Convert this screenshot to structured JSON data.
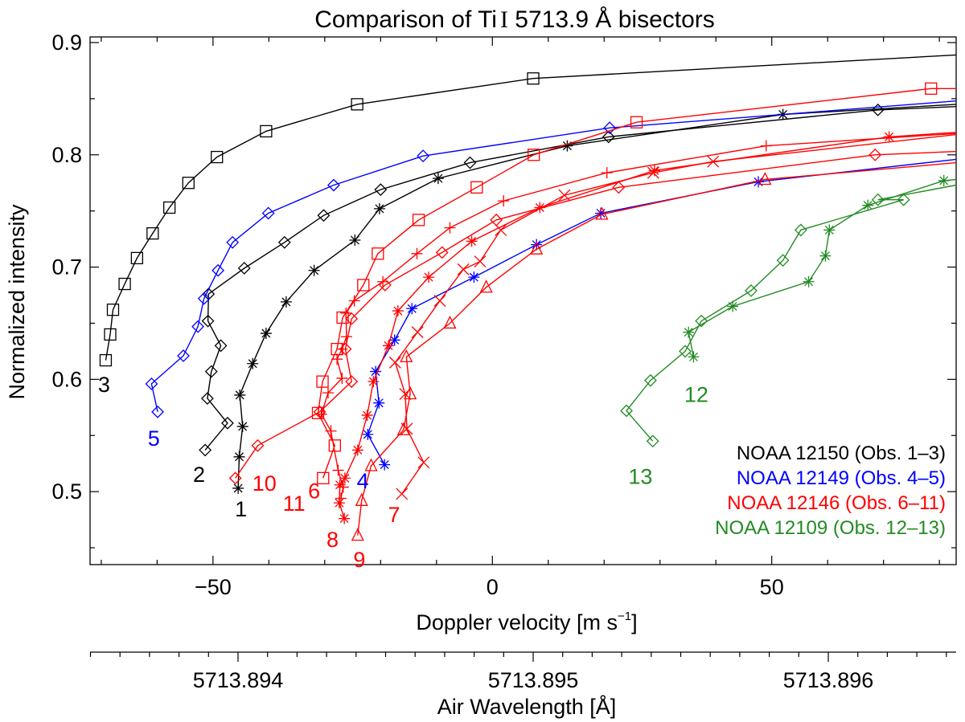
{
  "chart_data": {
    "type": "line",
    "title": "Comparison of Ti I 5713.9 Å bisectors",
    "title_parts": {
      "prefix": "Comparison of Ti",
      "ion": "I",
      "suffix": " 5713.9 Å bisectors"
    },
    "xlabel": "Doppler velocity [m s⁻¹]",
    "xlabel_parts": {
      "main": "Doppler velocity [m s",
      "sup": "−1",
      "end": "]"
    },
    "ylabel": "Normalized intensity",
    "x2label": "Air Wavelength [Å]",
    "xlim": [
      -72,
      83
    ],
    "ylim": [
      0.435,
      0.905
    ],
    "x_ticks": [
      -50,
      0,
      50
    ],
    "x_tick_labels": [
      "−50",
      "0",
      "50"
    ],
    "y_ticks": [
      0.5,
      0.6,
      0.7,
      0.8,
      0.9
    ],
    "y_tick_labels": [
      "0.5",
      "0.6",
      "0.7",
      "0.8",
      "0.9"
    ],
    "wavelength_ticks": [
      5713.894,
      5713.895,
      5713.896
    ],
    "wavelength_tick_labels": [
      "5713.894",
      "5713.895",
      "5713.896"
    ],
    "grid": false,
    "legend_position": "bottom-right",
    "colors": {
      "black": "#000000",
      "blue": "#0000ff",
      "red": "#ff0000",
      "green": "#228b22"
    },
    "legend": [
      {
        "region": "NOAA 12150",
        "obs": "(Obs. 1–3)",
        "color": "#000000"
      },
      {
        "region": "NOAA 12149",
        "obs": "(Obs. 4–5)",
        "color": "#0000ff"
      },
      {
        "region": "NOAA 12146",
        "obs": "(Obs. 6–11)",
        "color": "#ff0000"
      },
      {
        "region": "NOAA 12109",
        "obs": "(Obs. 12–13)",
        "color": "#228b22"
      }
    ],
    "series": [
      {
        "name": "Obs. 1",
        "label": "1",
        "color": "#000000",
        "marker": "asterisk",
        "label_at": [
          -45,
          0.485
        ],
        "points": [
          [
            -45.5,
            0.503
          ],
          [
            -45.3,
            0.531
          ],
          [
            -44.7,
            0.558
          ],
          [
            -45.2,
            0.586
          ],
          [
            -42.9,
            0.614
          ],
          [
            -40.5,
            0.641
          ],
          [
            -36.9,
            0.669
          ],
          [
            -31.9,
            0.697
          ],
          [
            -24.6,
            0.724
          ],
          [
            -20.2,
            0.752
          ],
          [
            -9.7,
            0.779
          ],
          [
            13.4,
            0.808
          ],
          [
            52.0,
            0.836
          ],
          [
            83.0,
            0.845
          ]
        ]
      },
      {
        "name": "Obs. 2",
        "label": "2",
        "color": "#000000",
        "marker": "diamond",
        "label_at": [
          -52.5,
          0.516
        ],
        "points": [
          [
            -51.4,
            0.537
          ],
          [
            -47.4,
            0.561
          ],
          [
            -51.0,
            0.583
          ],
          [
            -50.3,
            0.607
          ],
          [
            -48.6,
            0.63
          ],
          [
            -50.9,
            0.652
          ],
          [
            -50.8,
            0.676
          ],
          [
            -44.4,
            0.699
          ],
          [
            -37.2,
            0.722
          ],
          [
            -30.2,
            0.746
          ],
          [
            -20.0,
            0.769
          ],
          [
            -4.0,
            0.793
          ],
          [
            20.8,
            0.816
          ],
          [
            69.0,
            0.84
          ],
          [
            83.0,
            0.843
          ]
        ]
      },
      {
        "name": "Obs. 3",
        "label": "3",
        "color": "#000000",
        "marker": "square",
        "label_at": [
          -69.5,
          0.596
        ],
        "points": [
          [
            -69.2,
            0.617
          ],
          [
            -68.4,
            0.64
          ],
          [
            -67.9,
            0.662
          ],
          [
            -65.8,
            0.685
          ],
          [
            -63.6,
            0.708
          ],
          [
            -60.8,
            0.73
          ],
          [
            -57.8,
            0.753
          ],
          [
            -54.4,
            0.775
          ],
          [
            -49.3,
            0.798
          ],
          [
            -40.5,
            0.821
          ],
          [
            -24.2,
            0.845
          ],
          [
            7.3,
            0.868
          ],
          [
            83.0,
            0.889
          ]
        ]
      },
      {
        "name": "Obs. 4",
        "label": "4",
        "color": "#0000ff",
        "marker": "asterisk",
        "label_at": [
          -23.2,
          0.51
        ],
        "points": [
          [
            -19.3,
            0.524
          ],
          [
            -22.3,
            0.551
          ],
          [
            -20.3,
            0.579
          ],
          [
            -20.9,
            0.607
          ],
          [
            -17.5,
            0.635
          ],
          [
            -14.4,
            0.663
          ],
          [
            -3.3,
            0.691
          ],
          [
            7.9,
            0.72
          ],
          [
            19.4,
            0.748
          ],
          [
            47.6,
            0.776
          ],
          [
            83.0,
            0.796
          ]
        ]
      },
      {
        "name": "Obs. 5",
        "label": "5",
        "color": "#0000ff",
        "marker": "diamond",
        "label_at": [
          -60.6,
          0.548
        ],
        "points": [
          [
            -59.9,
            0.571
          ],
          [
            -61.0,
            0.596
          ],
          [
            -55.3,
            0.621
          ],
          [
            -52.7,
            0.647
          ],
          [
            -51.6,
            0.672
          ],
          [
            -49.1,
            0.697
          ],
          [
            -46.5,
            0.722
          ],
          [
            -40.1,
            0.748
          ],
          [
            -28.4,
            0.773
          ],
          [
            -12.4,
            0.799
          ],
          [
            21.0,
            0.824
          ],
          [
            83.0,
            0.848
          ]
        ]
      },
      {
        "name": "Obs. 6",
        "label": "6",
        "color": "#ff0000",
        "marker": "plus",
        "label_at": [
          -31.9,
          0.501
        ],
        "points": [
          [
            -27.1,
            0.494
          ],
          [
            -26.7,
            0.504
          ],
          [
            -27.6,
            0.519
          ],
          [
            -28.9,
            0.554
          ],
          [
            -30.6,
            0.569
          ],
          [
            -29.4,
            0.588
          ],
          [
            -26.9,
            0.601
          ],
          [
            -27.8,
            0.618
          ],
          [
            -26.9,
            0.627
          ],
          [
            -26.1,
            0.638
          ],
          [
            -26.2,
            0.659
          ],
          [
            -24.7,
            0.67
          ],
          [
            -19.6,
            0.687
          ],
          [
            -13.5,
            0.712
          ],
          [
            -7.6,
            0.735
          ],
          [
            2.0,
            0.759
          ],
          [
            20.5,
            0.784
          ],
          [
            49.0,
            0.808
          ],
          [
            83.0,
            0.819
          ]
        ]
      },
      {
        "name": "Obs. 7",
        "label": "7",
        "color": "#ff0000",
        "marker": "x",
        "label_at": [
          -17.6,
          0.48
        ],
        "points": [
          [
            -16.2,
            0.498
          ],
          [
            -12.3,
            0.526
          ],
          [
            -15.3,
            0.556
          ],
          [
            -15.6,
            0.587
          ],
          [
            -17.4,
            0.615
          ],
          [
            -13.4,
            0.642
          ],
          [
            -9.4,
            0.67
          ],
          [
            -5.2,
            0.698
          ],
          [
            -2.2,
            0.705
          ],
          [
            1.5,
            0.733
          ],
          [
            12.9,
            0.764
          ],
          [
            28.8,
            0.784
          ],
          [
            39.5,
            0.794
          ],
          [
            83.0,
            0.818
          ]
        ]
      },
      {
        "name": "Obs. 8",
        "label": "8",
        "color": "#ff0000",
        "marker": "asterisk",
        "label_at": [
          -28.6,
          0.458
        ],
        "points": [
          [
            -26.5,
            0.476
          ],
          [
            -27.4,
            0.49
          ],
          [
            -27.3,
            0.506
          ],
          [
            -26.4,
            0.512
          ],
          [
            -24.1,
            0.537
          ],
          [
            -22.4,
            0.568
          ],
          [
            -21.3,
            0.598
          ],
          [
            -18.6,
            0.63
          ],
          [
            -16.9,
            0.661
          ],
          [
            -11.4,
            0.691
          ],
          [
            -3.7,
            0.723
          ],
          [
            8.5,
            0.753
          ],
          [
            29.0,
            0.786
          ],
          [
            71.0,
            0.816
          ],
          [
            83.0,
            0.82
          ]
        ]
      },
      {
        "name": "Obs. 9",
        "label": "9",
        "color": "#ff0000",
        "marker": "triangle",
        "label_at": [
          -23.8,
          0.44
        ],
        "points": [
          [
            -24.1,
            0.461
          ],
          [
            -23.4,
            0.492
          ],
          [
            -21.7,
            0.523
          ],
          [
            -15.9,
            0.555
          ],
          [
            -14.7,
            0.587
          ],
          [
            -15.4,
            0.62
          ],
          [
            -7.6,
            0.65
          ],
          [
            -1.1,
            0.682
          ],
          [
            7.9,
            0.716
          ],
          [
            19.6,
            0.747
          ],
          [
            48.8,
            0.778
          ],
          [
            83.0,
            0.793
          ]
        ]
      },
      {
        "name": "Obs. 10",
        "label": "10",
        "color": "#ff0000",
        "marker": "diamond",
        "label_at": [
          -40.8,
          0.508
        ],
        "points": [
          [
            -46.0,
            0.512
          ],
          [
            -42.0,
            0.541
          ],
          [
            -30.9,
            0.571
          ],
          [
            -25.2,
            0.598
          ],
          [
            -26.3,
            0.627
          ],
          [
            -25.2,
            0.654
          ],
          [
            -19.2,
            0.684
          ],
          [
            -9.0,
            0.713
          ],
          [
            0.7,
            0.742
          ],
          [
            22.6,
            0.771
          ],
          [
            68.5,
            0.8
          ],
          [
            83.0,
            0.803
          ]
        ]
      },
      {
        "name": "Obs. 11",
        "label": "11",
        "color": "#ff0000",
        "marker": "square",
        "label_at": [
          -35.5,
          0.49
        ],
        "points": [
          [
            -30.3,
            0.512
          ],
          [
            -28.2,
            0.541
          ],
          [
            -31.2,
            0.57
          ],
          [
            -30.4,
            0.598
          ],
          [
            -27.8,
            0.627
          ],
          [
            -26.8,
            0.655
          ],
          [
            -23.1,
            0.684
          ],
          [
            -20.5,
            0.712
          ],
          [
            -13.2,
            0.742
          ],
          [
            -2.8,
            0.771
          ],
          [
            7.4,
            0.8
          ],
          [
            25.8,
            0.829
          ],
          [
            78.5,
            0.859
          ],
          [
            83.0,
            0.859
          ]
        ]
      },
      {
        "name": "Obs. 12",
        "label": "12",
        "color": "#228b22",
        "marker": "asterisk",
        "label_at": [
          36.5,
          0.587
        ],
        "points": [
          [
            36.0,
            0.62
          ],
          [
            35.1,
            0.642
          ],
          [
            43.0,
            0.665
          ],
          [
            56.6,
            0.687
          ],
          [
            59.6,
            0.71
          ],
          [
            60.3,
            0.733
          ],
          [
            67.2,
            0.755
          ],
          [
            80.8,
            0.777
          ],
          [
            83.0,
            0.778
          ]
        ]
      },
      {
        "name": "Obs. 13",
        "label": "13",
        "color": "#228b22",
        "marker": "diamond",
        "label_at": [
          26.5,
          0.514
        ],
        "points": [
          [
            28.7,
            0.545
          ],
          [
            24.0,
            0.572
          ],
          [
            28.3,
            0.599
          ],
          [
            34.5,
            0.625
          ],
          [
            37.4,
            0.652
          ],
          [
            46.3,
            0.679
          ],
          [
            52.0,
            0.706
          ],
          [
            55.2,
            0.733
          ],
          [
            73.6,
            0.76
          ],
          [
            69.0,
            0.76
          ],
          [
            83.0,
            0.773
          ]
        ]
      }
    ]
  }
}
